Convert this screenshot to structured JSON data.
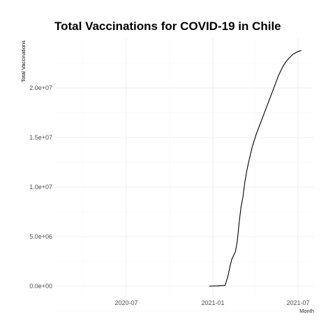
{
  "chart_data": {
    "type": "line",
    "title": "Total Vaccinations for COVID-19 in Chile",
    "xlabel": "Month",
    "ylabel": "Total Vaccinations",
    "x_ticks": [
      "2020-07",
      "2021-01",
      "2021-07"
    ],
    "y_ticks": [
      "0.0e+00",
      "5.0e+06",
      "1.0e+07",
      "1.5e+07",
      "2.0e+07"
    ],
    "grid": true,
    "series": [
      {
        "x": [
          "2020-12-24",
          "2021-01-10",
          "2021-01-27",
          "2021-02-02",
          "2021-02-06",
          "2021-02-10",
          "2021-02-14",
          "2021-02-18",
          "2021-02-22",
          "2021-02-26",
          "2021-03-02",
          "2021-03-06",
          "2021-03-10",
          "2021-03-14",
          "2021-03-18",
          "2021-03-22",
          "2021-03-26",
          "2021-03-30",
          "2021-04-03",
          "2021-04-07",
          "2021-04-11",
          "2021-04-15",
          "2021-04-19",
          "2021-04-23",
          "2021-04-27",
          "2021-05-01",
          "2021-05-05",
          "2021-05-09",
          "2021-05-13",
          "2021-05-17",
          "2021-05-21",
          "2021-05-25",
          "2021-05-29",
          "2021-06-02",
          "2021-06-06",
          "2021-06-10",
          "2021-06-14",
          "2021-06-18",
          "2021-06-22",
          "2021-06-26",
          "2021-06-30",
          "2021-07-04",
          "2021-07-08"
        ],
        "y": [
          0,
          20000,
          80000,
          1000000,
          1900000,
          2700000,
          3100000,
          3500000,
          4600000,
          6500000,
          8000000,
          9000000,
          10500000,
          11600000,
          12500000,
          13300000,
          14100000,
          14700000,
          15300000,
          15800000,
          16300000,
          16800000,
          17300000,
          17800000,
          18300000,
          18800000,
          19300000,
          19800000,
          20300000,
          20800000,
          21300000,
          21700000,
          22100000,
          22400000,
          22700000,
          22900000,
          23100000,
          23300000,
          23450000,
          23550000,
          23650000,
          23720000,
          23780000
        ]
      }
    ]
  }
}
